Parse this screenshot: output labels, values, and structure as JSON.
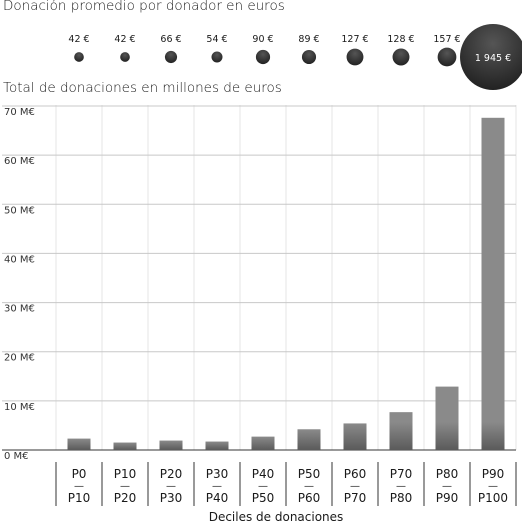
{
  "chart_data": [
    {
      "type": "scatter",
      "title": "Donación promedio por donador en euros",
      "categories": [
        "P0—P10",
        "P10—P20",
        "P20—P30",
        "P30—P40",
        "P40—P50",
        "P50—P60",
        "P60—P70",
        "P70—P80",
        "P80—P90",
        "P90—P100"
      ],
      "values": [
        42,
        42,
        66,
        54,
        90,
        89,
        127,
        128,
        157,
        1945
      ],
      "value_labels": [
        "42 €",
        "42 €",
        "66 €",
        "54 €",
        "90 €",
        "89 €",
        "127 €",
        "128 €",
        "157 €",
        "1 945 €"
      ]
    },
    {
      "type": "bar",
      "title": "Total de donaciones en millones de euros",
      "xlabel": "Deciles de donaciones",
      "ylabel": "",
      "ylim": [
        0,
        70
      ],
      "yticks": [
        0,
        10,
        20,
        30,
        40,
        50,
        60,
        70
      ],
      "ytick_labels": [
        "0 M€",
        "10 M€",
        "20 M€",
        "30 M€",
        "40 M€",
        "50 M€",
        "60 M€",
        "70 M€"
      ],
      "categories": [
        {
          "top": "P0",
          "dash": "—",
          "bottom": "P10"
        },
        {
          "top": "P10",
          "dash": "—",
          "bottom": "P20"
        },
        {
          "top": "P20",
          "dash": "—",
          "bottom": "P30"
        },
        {
          "top": "P30",
          "dash": "—",
          "bottom": "P40"
        },
        {
          "top": "P40",
          "dash": "—",
          "bottom": "P50"
        },
        {
          "top": "P50",
          "dash": "—",
          "bottom": "P60"
        },
        {
          "top": "P60",
          "dash": "—",
          "bottom": "P70"
        },
        {
          "top": "P70",
          "dash": "—",
          "bottom": "P80"
        },
        {
          "top": "P80",
          "dash": "—",
          "bottom": "P90"
        },
        {
          "top": "P90",
          "dash": "—",
          "bottom": "P100"
        }
      ],
      "values": [
        2.3,
        1.5,
        1.9,
        1.7,
        2.7,
        4.2,
        5.4,
        7.7,
        12.9,
        67.6
      ],
      "grid": true
    }
  ],
  "colors": {
    "bubble": "#222222",
    "bubble_highlight": "#555555",
    "bar": "#8a8a8a",
    "bar_dark": "#555555",
    "grid": "#c8c8c8",
    "axis": "#333333"
  }
}
